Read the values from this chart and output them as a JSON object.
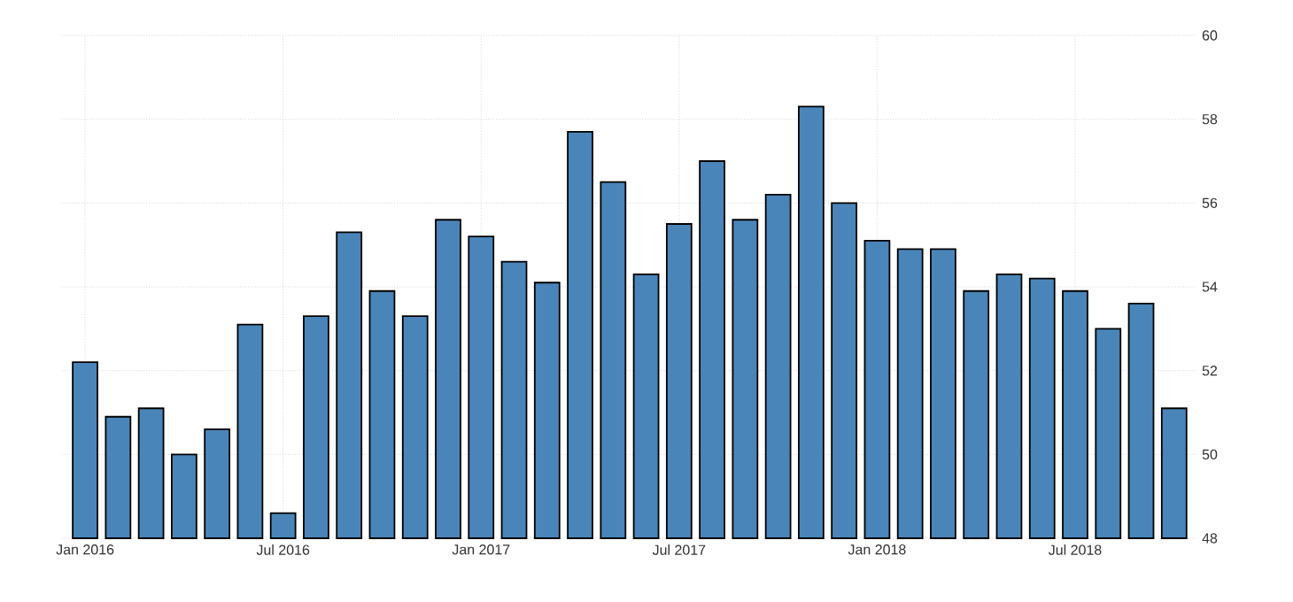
{
  "chart_data": {
    "type": "bar",
    "categories": [
      "Jan 2016",
      null,
      null,
      null,
      null,
      null,
      "Jul 2016",
      null,
      null,
      null,
      null,
      null,
      "Jan 2017",
      null,
      null,
      null,
      null,
      null,
      "Jul 2017",
      null,
      null,
      null,
      null,
      null,
      "Jan 2018",
      null,
      null,
      null,
      null,
      null,
      "Jul 2018",
      null,
      null,
      null
    ],
    "values": [
      52.2,
      50.9,
      51.1,
      50.0,
      50.6,
      53.1,
      48.6,
      53.3,
      55.3,
      53.9,
      53.3,
      55.6,
      55.2,
      54.6,
      54.1,
      57.7,
      56.5,
      54.3,
      55.5,
      57.0,
      55.6,
      56.2,
      58.3,
      56.0,
      55.1,
      54.9,
      54.9,
      53.9,
      54.3,
      54.2,
      53.9,
      53.0,
      53.6,
      51.1
    ],
    "color": "#4a85b9",
    "ylim": [
      48,
      60
    ],
    "yticks": [
      48,
      50,
      52,
      54,
      56,
      58,
      60
    ],
    "grid": true
  }
}
